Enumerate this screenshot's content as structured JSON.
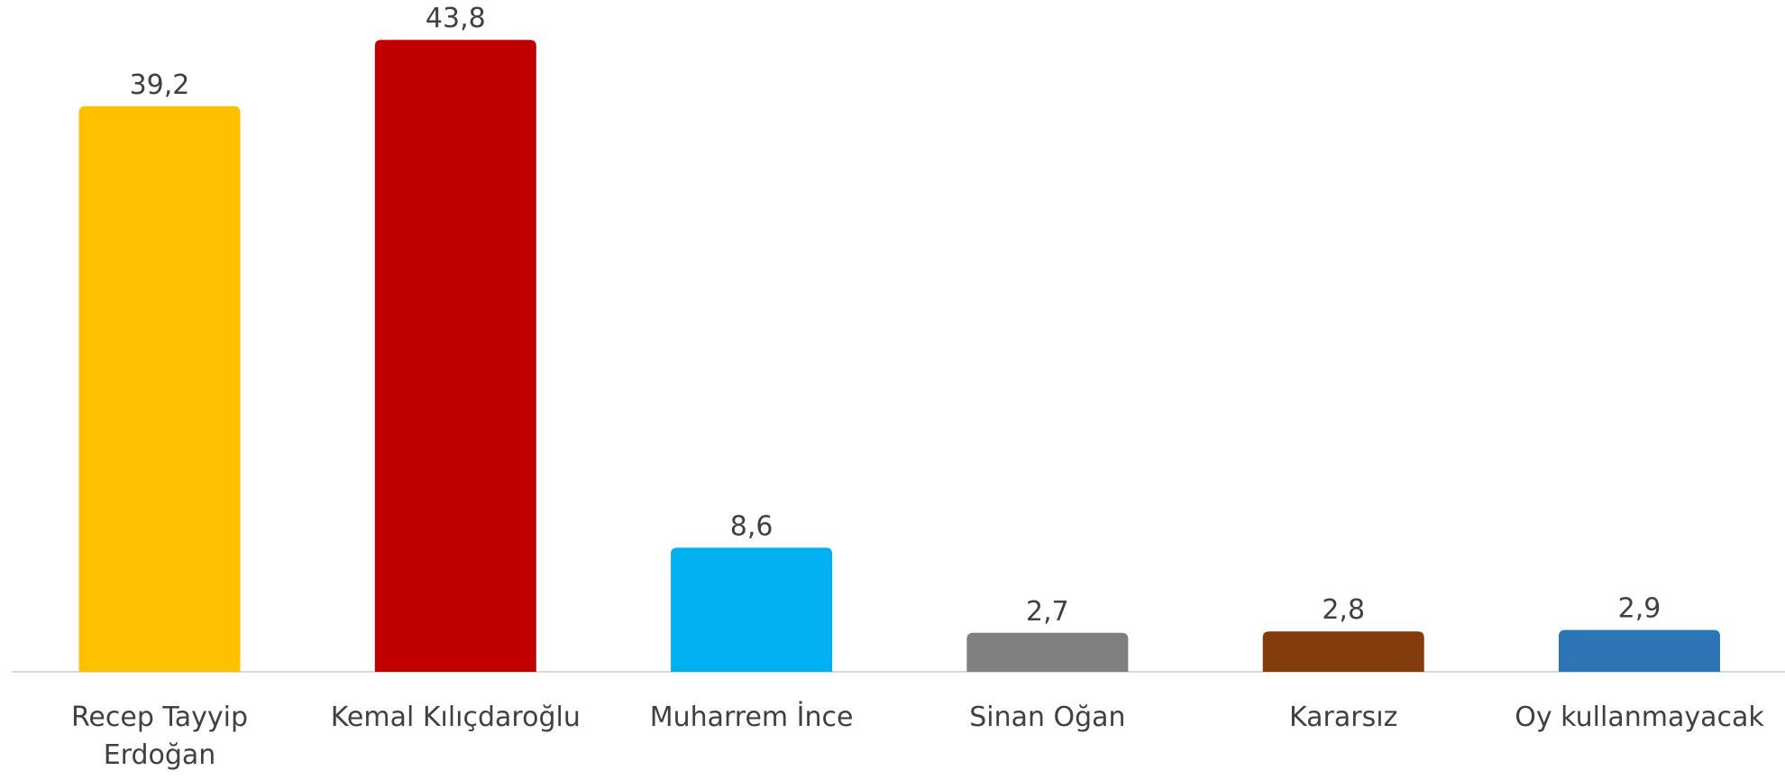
{
  "chart_data": {
    "type": "bar",
    "categories": [
      "Recep Tayyip Erdoğan",
      "Kemal Kılıçdaroğlu",
      "Muharrem İnce",
      "Sinan Oğan",
      "Kararsız",
      "Oy kullanmayacak"
    ],
    "values": [
      39.2,
      43.8,
      8.6,
      2.7,
      2.8,
      2.9
    ],
    "value_labels": [
      "39,2",
      "43,8",
      "8,6",
      "2,7",
      "2,8",
      "2,9"
    ],
    "colors": [
      "#FFC000",
      "#C00000",
      "#00B0F0",
      "#808080",
      "#843C0C",
      "#2E75B6"
    ]
  }
}
